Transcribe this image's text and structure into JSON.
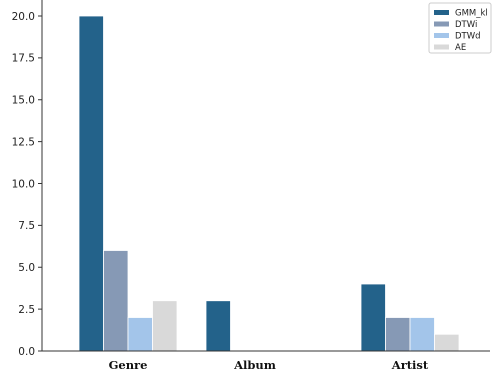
{
  "chart_data": {
    "type": "bar",
    "categories": [
      "Genre",
      "Album",
      "Artist"
    ],
    "series": [
      {
        "name": "GMM_kl",
        "color": "#23628a",
        "values": [
          20,
          3,
          4
        ]
      },
      {
        "name": "DTWi",
        "color": "#8699b5",
        "values": [
          6,
          0,
          2
        ]
      },
      {
        "name": "DTWd",
        "color": "#a3c5ea",
        "values": [
          2,
          0,
          2
        ]
      },
      {
        "name": "AE",
        "color": "#d9d9d9",
        "values": [
          3,
          0,
          1
        ]
      }
    ],
    "y_ticks": [
      "0.0",
      "2.5",
      "5.0",
      "7.5",
      "10.0",
      "12.5",
      "15.0",
      "17.5",
      "20.0"
    ],
    "ylim": [
      0,
      20
    ],
    "xlabel": "",
    "ylabel": "",
    "title": "",
    "grid": false,
    "legend_position": "top-right"
  }
}
